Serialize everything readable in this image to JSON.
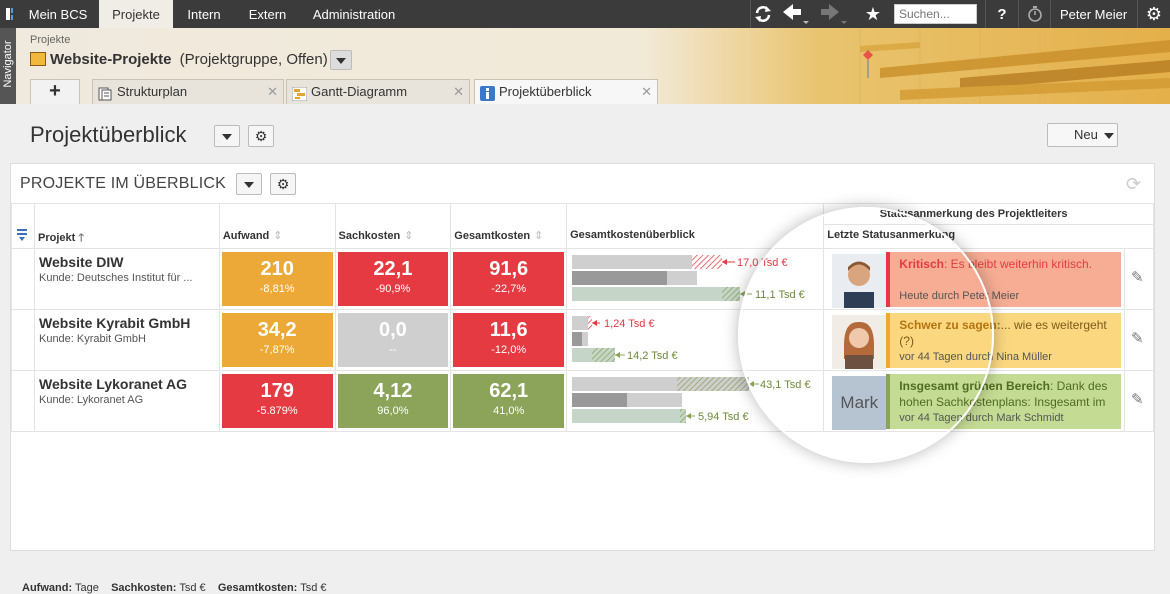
{
  "topbar": {
    "tabs": [
      "Mein BCS",
      "Projekte",
      "Intern",
      "Extern",
      "Administration"
    ],
    "active_tab": "Projekte",
    "search_placeholder": "Suchen...",
    "help": "?",
    "user": "Peter Meier"
  },
  "navigator": {
    "label": "Navigator"
  },
  "header": {
    "crumb": "Projekte",
    "title": "Website-Projekte",
    "subtitle": "(Projektgruppe, Offen)",
    "tabs": [
      {
        "label": "Strukturplan",
        "icon": "structure-icon"
      },
      {
        "label": "Gantt-Diagramm",
        "icon": "gantt-icon"
      },
      {
        "label": "Projektüberblick",
        "icon": "info-icon"
      }
    ]
  },
  "page": {
    "title": "Projektüberblick",
    "new_button": "Neu"
  },
  "panel": {
    "title": "PROJEKTE IM ÜBERBLICK",
    "group_header": "Statusanmerkung des Projektleiters",
    "columns": {
      "project": "Projekt",
      "aufwand": "Aufwand",
      "sachkosten": "Sachkosten",
      "gesamtkosten": "Gesamtkosten",
      "overview": "Gesamtkostenüberblick",
      "status": "Letzte Statusanmerkung"
    },
    "rows": [
      {
        "name": "Website DIW",
        "kunde": "Kunde:   Deutsches Institut für ...",
        "aufwand": {
          "value": "210",
          "pct": "-8,81%",
          "color": "#eca938"
        },
        "sachkosten": {
          "value": "22,1",
          "pct": "-90,9%",
          "color": "#e63a42"
        },
        "gesamtkosten": {
          "value": "91,6",
          "pct": "-22,7%",
          "color": "#e63a42"
        },
        "overview": {
          "upper": "17,0 Tsd €",
          "lower": "11,1 Tsd €"
        },
        "status": {
          "label": "Kritisch",
          "text": ": Es bleibt weiterhin kritisch.",
          "meta": "Heute  durch Peter Meier",
          "bg": "#f6ad93",
          "label_color": "#e63a42"
        }
      },
      {
        "name": "Website Kyrabit GmbH",
        "kunde": "Kunde:   Kyrabit GmbH",
        "aufwand": {
          "value": "34,2",
          "pct": "-7,87%",
          "color": "#eca938"
        },
        "sachkosten": {
          "value": "0,0",
          "pct": "--",
          "color": "#cfcfcf"
        },
        "gesamtkosten": {
          "value": "11,6",
          "pct": "-12,0%",
          "color": "#e63a42"
        },
        "overview": {
          "upper": "1,24 Tsd €",
          "lower": "14,2 Tsd €"
        },
        "status": {
          "label": "Schwer zu sagen:",
          "text": "... wie es weitergeht (?)",
          "meta": "vor 44 Tagen  durch Nina Müller",
          "bg": "#fbd880",
          "label_color": "#d08a1a"
        }
      },
      {
        "name": "Website Lykoranet AG",
        "kunde": "Kunde:   Lykoranet AG",
        "aufwand": {
          "value": "179",
          "pct": "-5.879%",
          "color": "#e63a42"
        },
        "sachkosten": {
          "value": "4,12",
          "pct": "96,0%",
          "color": "#8ba45a"
        },
        "gesamtkosten": {
          "value": "62,1",
          "pct": "41,0%",
          "color": "#8ba45a"
        },
        "overview": {
          "upper": "43,1 Tsd €",
          "lower": "5,94 Tsd €"
        },
        "status": {
          "label": "Insgesamt grünen Bereich",
          "text": ": Dank des hohen Sachkostenplans: Insgesamt im",
          "meta": "vor 44 Tagen  durch Mark Schmidt",
          "bg": "#c4db93",
          "label_color": "#5d7a2a",
          "avatar_text": "Mark"
        }
      }
    ]
  },
  "legend": {
    "a_label": "Aufwand:",
    "a_unit": "Tage",
    "s_label": "Sachkosten:",
    "s_unit": "Tsd €",
    "g_label": "Gesamtkosten:",
    "g_unit": "Tsd €"
  }
}
